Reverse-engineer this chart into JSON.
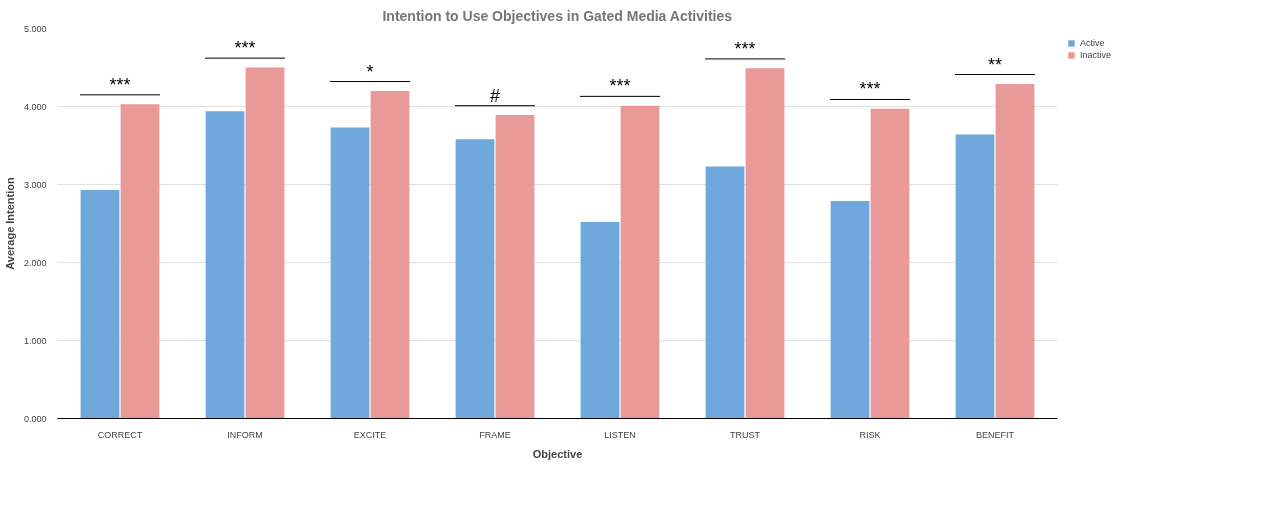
{
  "chart_data": {
    "type": "bar",
    "title": "Intention to Use Objectives in Gated Media Activities",
    "xlabel": "Objective",
    "ylabel": "Average Intention",
    "categories": [
      "CORRECT",
      "INFORM",
      "EXCITE",
      "FRAME",
      "LISTEN",
      "TRUST",
      "RISK",
      "BENEFIT"
    ],
    "series": [
      {
        "name": "Active",
        "color": "#6fa8dc",
        "values": [
          2.93,
          3.94,
          3.73,
          3.58,
          2.52,
          3.23,
          2.79,
          3.64
        ]
      },
      {
        "name": "Inactive",
        "color": "#ea9999",
        "values": [
          4.03,
          4.5,
          4.2,
          3.89,
          4.01,
          4.49,
          3.97,
          4.29
        ]
      }
    ],
    "ylim": [
      0,
      5
    ],
    "yticks": [
      {
        "value": 0,
        "label": "0.000"
      },
      {
        "value": 1,
        "label": "1.000"
      },
      {
        "value": 2,
        "label": "2.000"
      },
      {
        "value": 3,
        "label": "3.000"
      },
      {
        "value": 4,
        "label": "4.000"
      },
      {
        "value": 5,
        "label": "5.000"
      }
    ],
    "annotations": [
      "***",
      "***",
      "*",
      "#",
      "***",
      "***",
      "***",
      "**"
    ],
    "grid": "y",
    "legend": "top right"
  }
}
